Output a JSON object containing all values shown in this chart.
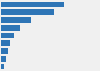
{
  "values": [
    72.3,
    61.0,
    35.0,
    22.0,
    14.5,
    10.0,
    7.5,
    5.5,
    3.5
  ],
  "bar_color": "#2e75b6",
  "background_color": "#f0f0f0",
  "bar_height": 0.75,
  "xlim": [
    0,
    100
  ],
  "grid_color": "#ffffff",
  "bar_edge_color": "none"
}
